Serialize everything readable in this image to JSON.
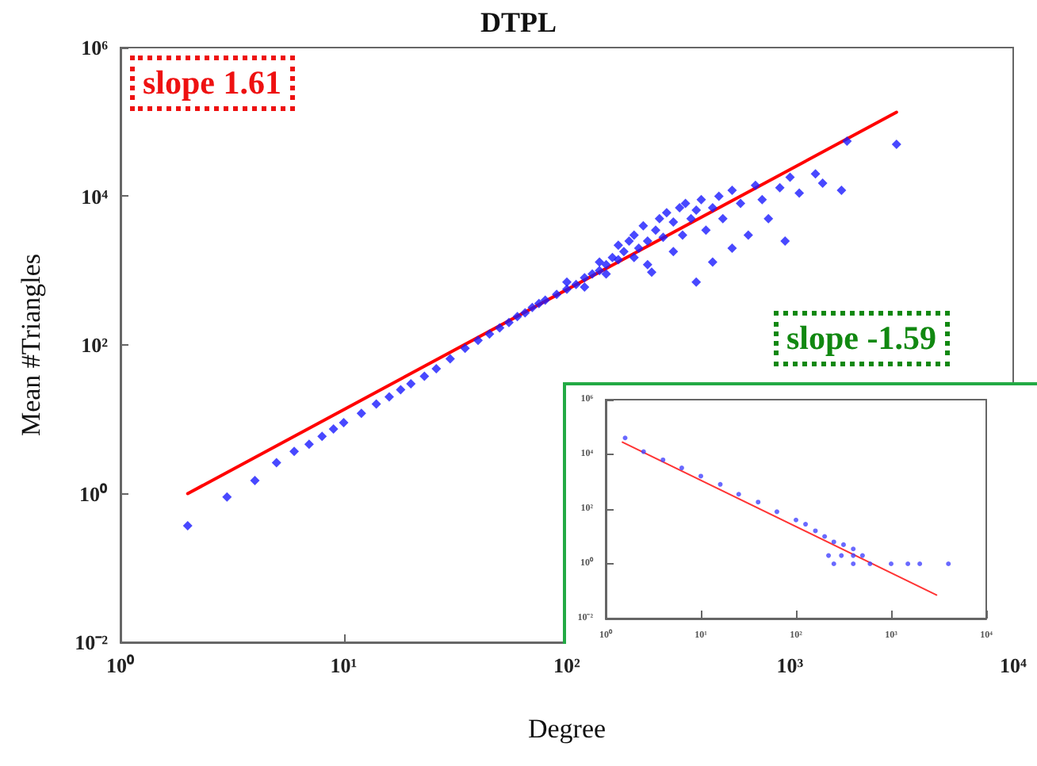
{
  "chart_data": [
    {
      "type": "scatter",
      "title": "DTPL",
      "xlabel": "Degree",
      "ylabel": "Mean #Triangles",
      "log": "xy",
      "grid": false,
      "xlim": [
        1,
        10000
      ],
      "ylim": [
        0.01,
        1000000
      ],
      "xticks": [
        {
          "value": 1,
          "label": "10⁰"
        },
        {
          "value": 10,
          "label": "10¹"
        },
        {
          "value": 100,
          "label": "10²"
        },
        {
          "value": 1000,
          "label": "10³"
        },
        {
          "value": 10000,
          "label": "10⁴"
        }
      ],
      "yticks": [
        {
          "value": 0.01,
          "label": "10⁻²"
        },
        {
          "value": 1,
          "label": "10⁰"
        },
        {
          "value": 100,
          "label": "10²"
        },
        {
          "value": 10000,
          "label": "10⁴"
        },
        {
          "value": 1000000,
          "label": "10⁶"
        }
      ],
      "annotations": [
        "slope 1.61"
      ],
      "series": [
        {
          "type": "scatter",
          "color": "#1a1aff",
          "marker": "diamond",
          "x": [
            2,
            3,
            4,
            5,
            6,
            7,
            8,
            9,
            10,
            12,
            14,
            16,
            18,
            20,
            23,
            26,
            30,
            35,
            40,
            45,
            50,
            55,
            60,
            65,
            70,
            75,
            80,
            90,
            100,
            100,
            110,
            120,
            120,
            130,
            140,
            140,
            150,
            150,
            160,
            170,
            170,
            180,
            190,
            200,
            200,
            210,
            220,
            230,
            230,
            240,
            250,
            260,
            270,
            280,
            300,
            300,
            320,
            330,
            340,
            360,
            380,
            380,
            400,
            420,
            450,
            450,
            480,
            500,
            550,
            550,
            600,
            650,
            700,
            750,
            800,
            900,
            950,
            1000,
            1100,
            1300,
            1400,
            1700,
            1800,
            3000
          ],
          "values": [
            0.37,
            0.9,
            1.5,
            2.6,
            3.7,
            4.6,
            5.9,
            7.4,
            9,
            12,
            16,
            20,
            25,
            30,
            38,
            48,
            65,
            90,
            115,
            140,
            170,
            200,
            240,
            270,
            320,
            360,
            400,
            480,
            560,
            700,
            650,
            800,
            600,
            900,
            1000,
            1300,
            1200,
            900,
            1500,
            1400,
            2200,
            1800,
            2500,
            1500,
            3000,
            2000,
            4000,
            1200,
            2500,
            950,
            3500,
            5000,
            2800,
            6000,
            4500,
            1800,
            7000,
            3000,
            8000,
            5000,
            700,
            6500,
            9000,
            3500,
            1300,
            7000,
            10000,
            5000,
            2000,
            12000,
            8000,
            3000,
            14000,
            9000,
            5000,
            13000,
            2500,
            18000,
            11000,
            20000,
            15000,
            12000,
            55000,
            50000
          ]
        },
        {
          "type": "line",
          "color": "#ff0000",
          "marker": "none",
          "x": [
            2,
            3000
          ],
          "values": [
            1,
            135000
          ]
        }
      ]
    },
    {
      "type": "scatter",
      "log": "xy",
      "grid": false,
      "xlim": [
        1,
        10000
      ],
      "ylim": [
        0.01,
        1000000
      ],
      "xticks": [
        {
          "value": 1,
          "label": "10⁰"
        },
        {
          "value": 10,
          "label": "10¹"
        },
        {
          "value": 100,
          "label": "10²"
        },
        {
          "value": 1000,
          "label": "10³"
        },
        {
          "value": 10000,
          "label": "10⁴"
        }
      ],
      "yticks": [
        {
          "value": 0.01,
          "label": "10⁻²"
        },
        {
          "value": 1,
          "label": "10⁰"
        },
        {
          "value": 100,
          "label": "10²"
        },
        {
          "value": 10000,
          "label": "10⁴"
        },
        {
          "value": 1000000,
          "label": "10⁶"
        }
      ],
      "annotations": [
        "slope -1.59"
      ],
      "series": [
        {
          "type": "scatter",
          "color": "#4444ff",
          "marker": "circle",
          "x": [
            1.6,
            2.5,
            4,
            6.3,
            10,
            16,
            25,
            40,
            63,
            100,
            126,
            160,
            200,
            250,
            316,
            400,
            220,
            300,
            400,
            500,
            250,
            400,
            600,
            1000,
            1500,
            2000,
            4000
          ],
          "values": [
            40000,
            12600,
            6300,
            3200,
            1600,
            800,
            350,
            180,
            80,
            40,
            28,
            16,
            10,
            6.3,
            5,
            3.5,
            2,
            2,
            2,
            2,
            1,
            1,
            1,
            1,
            1,
            1,
            1
          ]
        },
        {
          "type": "line",
          "color": "#ff3333",
          "marker": "none",
          "x": [
            1.5,
            3000
          ],
          "values": [
            28000,
            0.072
          ]
        }
      ]
    }
  ]
}
